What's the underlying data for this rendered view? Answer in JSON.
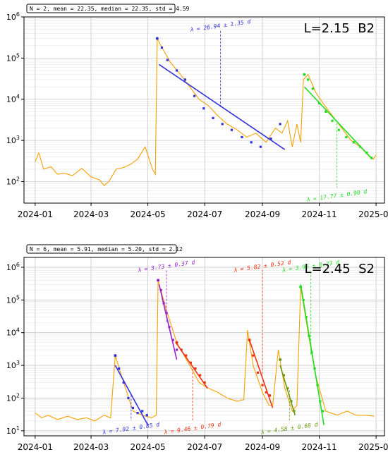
{
  "chart_data": [
    {
      "type": "line",
      "yscale": "log",
      "ylim": [
        30,
        1000000
      ],
      "xlim": [
        "2023-12-20",
        "2025-01-10"
      ],
      "x_ticks": [
        "2024-01",
        "2024-03",
        "2024-05",
        "2024-07",
        "2024-09",
        "2024-11",
        "2025-01"
      ],
      "y_ticks": [
        100,
        1000,
        10000,
        100000,
        1000000
      ],
      "grid": true,
      "stats": "N = 2, mean = 22.35, median = 22.35, std = 4.59",
      "panel_label": "L=2.15  B2",
      "base_color": "#f5a000",
      "background": [
        [
          "2024-01-01",
          300
        ],
        [
          "2024-01-05",
          500
        ],
        [
          "2024-01-10",
          200
        ],
        [
          "2024-01-18",
          230
        ],
        [
          "2024-01-25",
          150
        ],
        [
          "2024-02-01",
          160
        ],
        [
          "2024-02-10",
          140
        ],
        [
          "2024-02-20",
          210
        ],
        [
          "2024-03-01",
          130
        ],
        [
          "2024-03-10",
          110
        ],
        [
          "2024-03-15",
          80
        ],
        [
          "2024-03-20",
          100
        ],
        [
          "2024-03-28",
          200
        ],
        [
          "2024-04-05",
          220
        ],
        [
          "2024-04-12",
          260
        ],
        [
          "2024-04-20",
          350
        ],
        [
          "2024-04-28",
          700
        ],
        [
          "2024-05-06",
          200
        ],
        [
          "2024-05-09",
          150
        ],
        [
          "2024-05-11",
          300000
        ],
        [
          "2024-05-15",
          200000
        ],
        [
          "2024-05-25",
          80000
        ],
        [
          "2024-06-05",
          40000
        ],
        [
          "2024-06-15",
          20000
        ],
        [
          "2024-06-25",
          10000
        ],
        [
          "2024-07-05",
          7000
        ],
        [
          "2024-07-15",
          4000
        ],
        [
          "2024-07-25",
          2500
        ],
        [
          "2024-08-05",
          1800
        ],
        [
          "2024-08-15",
          1200
        ],
        [
          "2024-08-25",
          1500
        ],
        [
          "2024-09-05",
          900
        ],
        [
          "2024-09-15",
          2000
        ],
        [
          "2024-09-22",
          1500
        ],
        [
          "2024-09-28",
          3000
        ],
        [
          "2024-10-03",
          700
        ],
        [
          "2024-10-08",
          2500
        ],
        [
          "2024-10-12",
          900
        ],
        [
          "2024-10-15",
          30000
        ],
        [
          "2024-10-20",
          40000
        ],
        [
          "2024-10-28",
          15000
        ],
        [
          "2024-11-05",
          8000
        ],
        [
          "2024-11-15",
          4000
        ],
        [
          "2024-11-25",
          2000
        ],
        [
          "2024-12-05",
          1000
        ],
        [
          "2024-12-15",
          700
        ],
        [
          "2024-12-25",
          400
        ],
        [
          "2024-12-29",
          350
        ],
        [
          "2025-01-01",
          450
        ]
      ],
      "fits": [
        {
          "label": "λ = 26.94 ± 1.35 d",
          "color": "#3333dd",
          "start": [
            "2024-05-11",
            300000
          ],
          "fit": [
            [
              "2024-05-13",
              70000
            ],
            [
              "2024-09-25",
              600
            ]
          ],
          "points": [
            [
              "2024-05-11",
              300000
            ],
            [
              "2024-05-16",
              180000
            ],
            [
              "2024-05-22",
              90000
            ],
            [
              "2024-06-01",
              50000
            ],
            [
              "2024-06-10",
              30000
            ],
            [
              "2024-06-20",
              12000
            ],
            [
              "2024-06-30",
              6000
            ],
            [
              "2024-07-10",
              3500
            ],
            [
              "2024-07-20",
              2500
            ],
            [
              "2024-07-30",
              1800
            ],
            [
              "2024-08-10",
              1200
            ],
            [
              "2024-08-20",
              900
            ],
            [
              "2024-08-30",
              700
            ],
            [
              "2024-09-10",
              1100
            ],
            [
              "2024-09-20",
              2500
            ]
          ],
          "marker_x": "2024-07-18",
          "label_pos": "above"
        },
        {
          "label": "λ = 17.77 ± 0.90 d",
          "color": "#22dd22",
          "start": [
            "2024-10-16",
            40000
          ],
          "fit": [
            [
              "2024-10-16",
              20000
            ],
            [
              "2024-12-28",
              350
            ]
          ],
          "points": [
            [
              "2024-10-16",
              40000
            ],
            [
              "2024-10-20",
              30000
            ],
            [
              "2024-10-25",
              18000
            ],
            [
              "2024-11-01",
              8000
            ],
            [
              "2024-11-08",
              5000
            ],
            [
              "2024-11-15",
              3000
            ],
            [
              "2024-11-22",
              1800
            ],
            [
              "2024-11-30",
              1200
            ],
            [
              "2024-12-08",
              900
            ],
            [
              "2024-12-15",
              700
            ],
            [
              "2024-12-22",
              500
            ],
            [
              "2024-12-27",
              380
            ]
          ],
          "marker_x": "2024-11-20",
          "label_pos": "below"
        }
      ]
    },
    {
      "type": "line",
      "yscale": "log",
      "ylim": [
        7,
        2000000
      ],
      "xlim": [
        "2023-12-20",
        "2025-01-10"
      ],
      "x_ticks": [
        "2024-01",
        "2024-03",
        "2024-05",
        "2024-07",
        "2024-09",
        "2024-11",
        "2025-01"
      ],
      "y_ticks": [
        10,
        100,
        1000,
        10000,
        100000,
        1000000
      ],
      "grid": true,
      "stats": "N = 6, mean = 5.91, median = 5.20, std = 2.12",
      "panel_label": "L=2.45  S2",
      "base_color": "#f5a000",
      "background": [
        [
          "2024-01-01",
          35
        ],
        [
          "2024-01-08",
          25
        ],
        [
          "2024-01-15",
          30
        ],
        [
          "2024-01-25",
          22
        ],
        [
          "2024-02-05",
          28
        ],
        [
          "2024-02-15",
          22
        ],
        [
          "2024-02-25",
          25
        ],
        [
          "2024-03-05",
          20
        ],
        [
          "2024-03-15",
          30
        ],
        [
          "2024-03-22",
          25
        ],
        [
          "2024-03-27",
          2000
        ],
        [
          "2024-04-05",
          300
        ],
        [
          "2024-04-15",
          40
        ],
        [
          "2024-04-25",
          30
        ],
        [
          "2024-05-05",
          25
        ],
        [
          "2024-05-10",
          30
        ],
        [
          "2024-05-12",
          400000
        ],
        [
          "2024-05-20",
          60000
        ],
        [
          "2024-06-01",
          5000
        ],
        [
          "2024-06-15",
          1000
        ],
        [
          "2024-06-25",
          300
        ],
        [
          "2024-07-05",
          200
        ],
        [
          "2024-07-15",
          150
        ],
        [
          "2024-07-25",
          100
        ],
        [
          "2024-08-05",
          80
        ],
        [
          "2024-08-12",
          90
        ],
        [
          "2024-08-16",
          12000
        ],
        [
          "2024-08-22",
          1000
        ],
        [
          "2024-09-01",
          150
        ],
        [
          "2024-09-08",
          60
        ],
        [
          "2024-09-12",
          60
        ],
        [
          "2024-09-18",
          3000
        ],
        [
          "2024-09-25",
          200
        ],
        [
          "2024-10-03",
          40
        ],
        [
          "2024-10-08",
          60
        ],
        [
          "2024-10-12",
          250000
        ],
        [
          "2024-10-20",
          10000
        ],
        [
          "2024-10-28",
          500
        ],
        [
          "2024-11-08",
          40
        ],
        [
          "2024-11-20",
          30
        ],
        [
          "2024-12-01",
          40
        ],
        [
          "2024-12-10",
          30
        ],
        [
          "2024-12-20",
          30
        ],
        [
          "2024-12-30",
          28
        ]
      ],
      "fits": [
        {
          "label": "λ = 7.92 ± 0.85 d",
          "color": "#3333dd",
          "start": [
            "2024-03-27",
            2000
          ],
          "fit": [
            [
              "2024-03-27",
              1000
            ],
            [
              "2024-05-01",
              15
            ]
          ],
          "points": [
            [
              "2024-03-27",
              2000
            ],
            [
              "2024-03-31",
              800
            ],
            [
              "2024-04-05",
              300
            ],
            [
              "2024-04-10",
              100
            ],
            [
              "2024-04-15",
              50
            ],
            [
              "2024-04-20",
              35
            ],
            [
              "2024-04-25",
              40
            ],
            [
              "2024-04-30",
              30
            ]
          ],
          "marker_x": "2024-04-13",
          "label_pos": "below"
        },
        {
          "label": "λ = 3.73 ± 0.37 d",
          "color": "#9922cc",
          "start": [
            "2024-05-12",
            400000
          ],
          "fit": [
            [
              "2024-05-13",
              300000
            ],
            [
              "2024-06-01",
              1500
            ]
          ],
          "points": [
            [
              "2024-05-12",
              400000
            ],
            [
              "2024-05-15",
              200000
            ],
            [
              "2024-05-18",
              80000
            ],
            [
              "2024-05-21",
              40000
            ],
            [
              "2024-05-24",
              15000
            ],
            [
              "2024-05-28",
              6000
            ],
            [
              "2024-06-01",
              3000
            ]
          ],
          "marker_x": "2024-05-21",
          "label_pos": "above"
        },
        {
          "label": "λ = 9.46 ± 0.79 d",
          "color": "#ee3311",
          "start": [
            "2024-06-01",
            5000
          ],
          "fit": [
            [
              "2024-05-31",
              5000
            ],
            [
              "2024-07-04",
              200
            ]
          ],
          "points": [
            [
              "2024-06-01",
              5000
            ],
            [
              "2024-06-06",
              3000
            ],
            [
              "2024-06-11",
              2000
            ],
            [
              "2024-06-16",
              1200
            ],
            [
              "2024-06-21",
              800
            ],
            [
              "2024-06-26",
              500
            ],
            [
              "2024-07-01",
              300
            ]
          ],
          "marker_x": "2024-06-18",
          "label_pos": "below"
        },
        {
          "label": "λ = 5.82 ± 0.52 d",
          "color": "#ee3311",
          "start": [
            "2024-08-18",
            6000
          ],
          "fit": [
            [
              "2024-08-18",
              6000
            ],
            [
              "2024-09-12",
              50
            ]
          ],
          "points": [
            [
              "2024-08-18",
              6000
            ],
            [
              "2024-08-22",
              2000
            ],
            [
              "2024-08-27",
              600
            ],
            [
              "2024-09-01",
              250
            ],
            [
              "2024-09-05",
              150
            ],
            [
              "2024-09-09",
              120
            ]
          ],
          "marker_x": "2024-09-01",
          "label_pos": "above"
        },
        {
          "label": "λ = 4.58 ± 0.68 d",
          "color": "#669911",
          "start": [
            "2024-09-20",
            1500
          ],
          "fit": [
            [
              "2024-09-20",
              1000
            ],
            [
              "2024-10-06",
              30
            ]
          ],
          "points": [
            [
              "2024-09-20",
              1500
            ],
            [
              "2024-09-24",
              500
            ],
            [
              "2024-09-28",
              200
            ],
            [
              "2024-10-02",
              80
            ],
            [
              "2024-10-05",
              40
            ]
          ],
          "marker_x": "2024-09-30",
          "label_pos": "below"
        },
        {
          "label": "λ = 3.98 ± 0.23 d",
          "color": "#22dd22",
          "start": [
            "2024-10-12",
            250000
          ],
          "fit": [
            [
              "2024-10-12",
              300000
            ],
            [
              "2024-11-06",
              15
            ]
          ],
          "points": [
            [
              "2024-10-12",
              250000
            ],
            [
              "2024-10-15",
              100000
            ],
            [
              "2024-10-18",
              30000
            ],
            [
              "2024-10-21",
              8000
            ],
            [
              "2024-10-24",
              2500
            ],
            [
              "2024-10-27",
              800
            ],
            [
              "2024-10-30",
              250
            ],
            [
              "2024-11-02",
              80
            ],
            [
              "2024-11-05",
              40
            ]
          ],
          "marker_x": "2024-10-23",
          "label_pos": "above"
        }
      ]
    }
  ]
}
